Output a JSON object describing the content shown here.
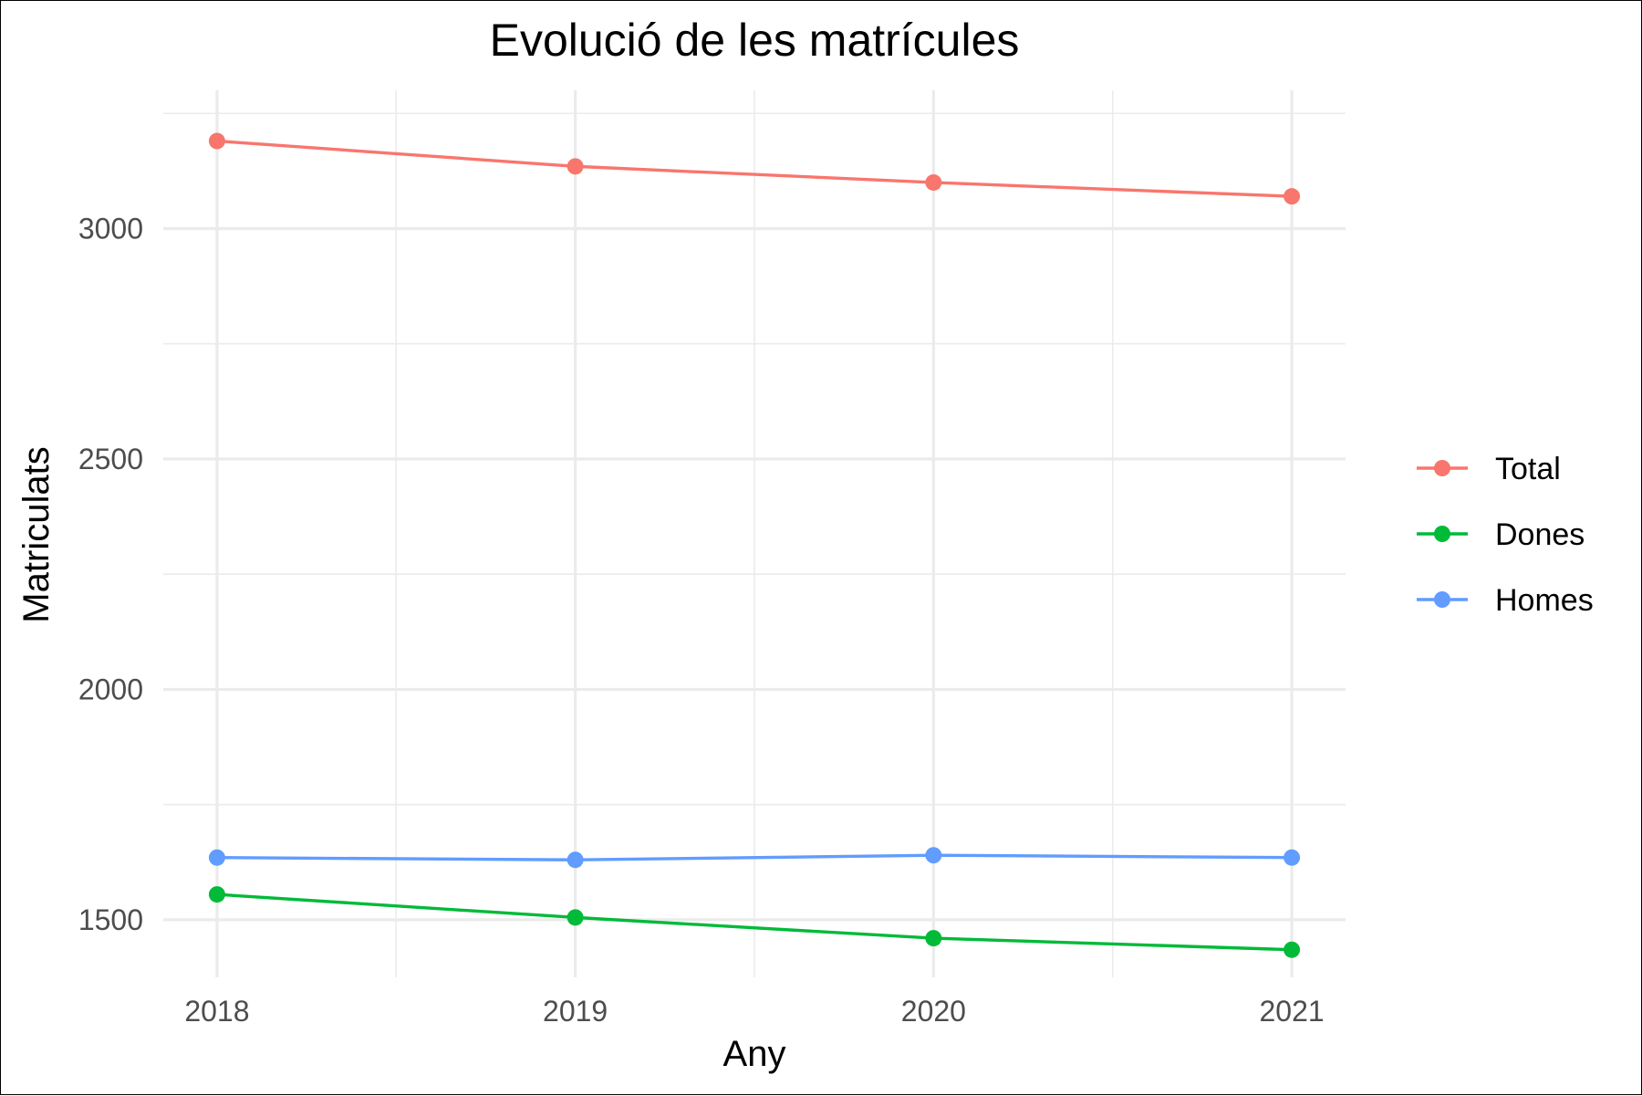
{
  "chart_data": {
    "type": "line",
    "title": "Evolució de les matrícules",
    "xlabel": "Any",
    "ylabel": "Matriculats",
    "x": [
      2018,
      2019,
      2020,
      2021
    ],
    "x_tick_labels": [
      "2018",
      "2019",
      "2020",
      "2021"
    ],
    "y_tick_values": [
      1500,
      2000,
      2500,
      3000
    ],
    "y_tick_labels": [
      "1500",
      "2000",
      "2500",
      "3000"
    ],
    "xlim": [
      2017.85,
      2021.15
    ],
    "ylim": [
      1375,
      3300
    ],
    "grid": true,
    "legend_position": "right",
    "series": [
      {
        "name": "Total",
        "color": "#F8766D",
        "values": [
          3190,
          3135,
          3100,
          3070
        ]
      },
      {
        "name": "Dones",
        "color": "#00BA38",
        "values": [
          1555,
          1505,
          1460,
          1435
        ]
      },
      {
        "name": "Homes",
        "color": "#619CFF",
        "values": [
          1635,
          1630,
          1640,
          1635
        ]
      }
    ]
  }
}
